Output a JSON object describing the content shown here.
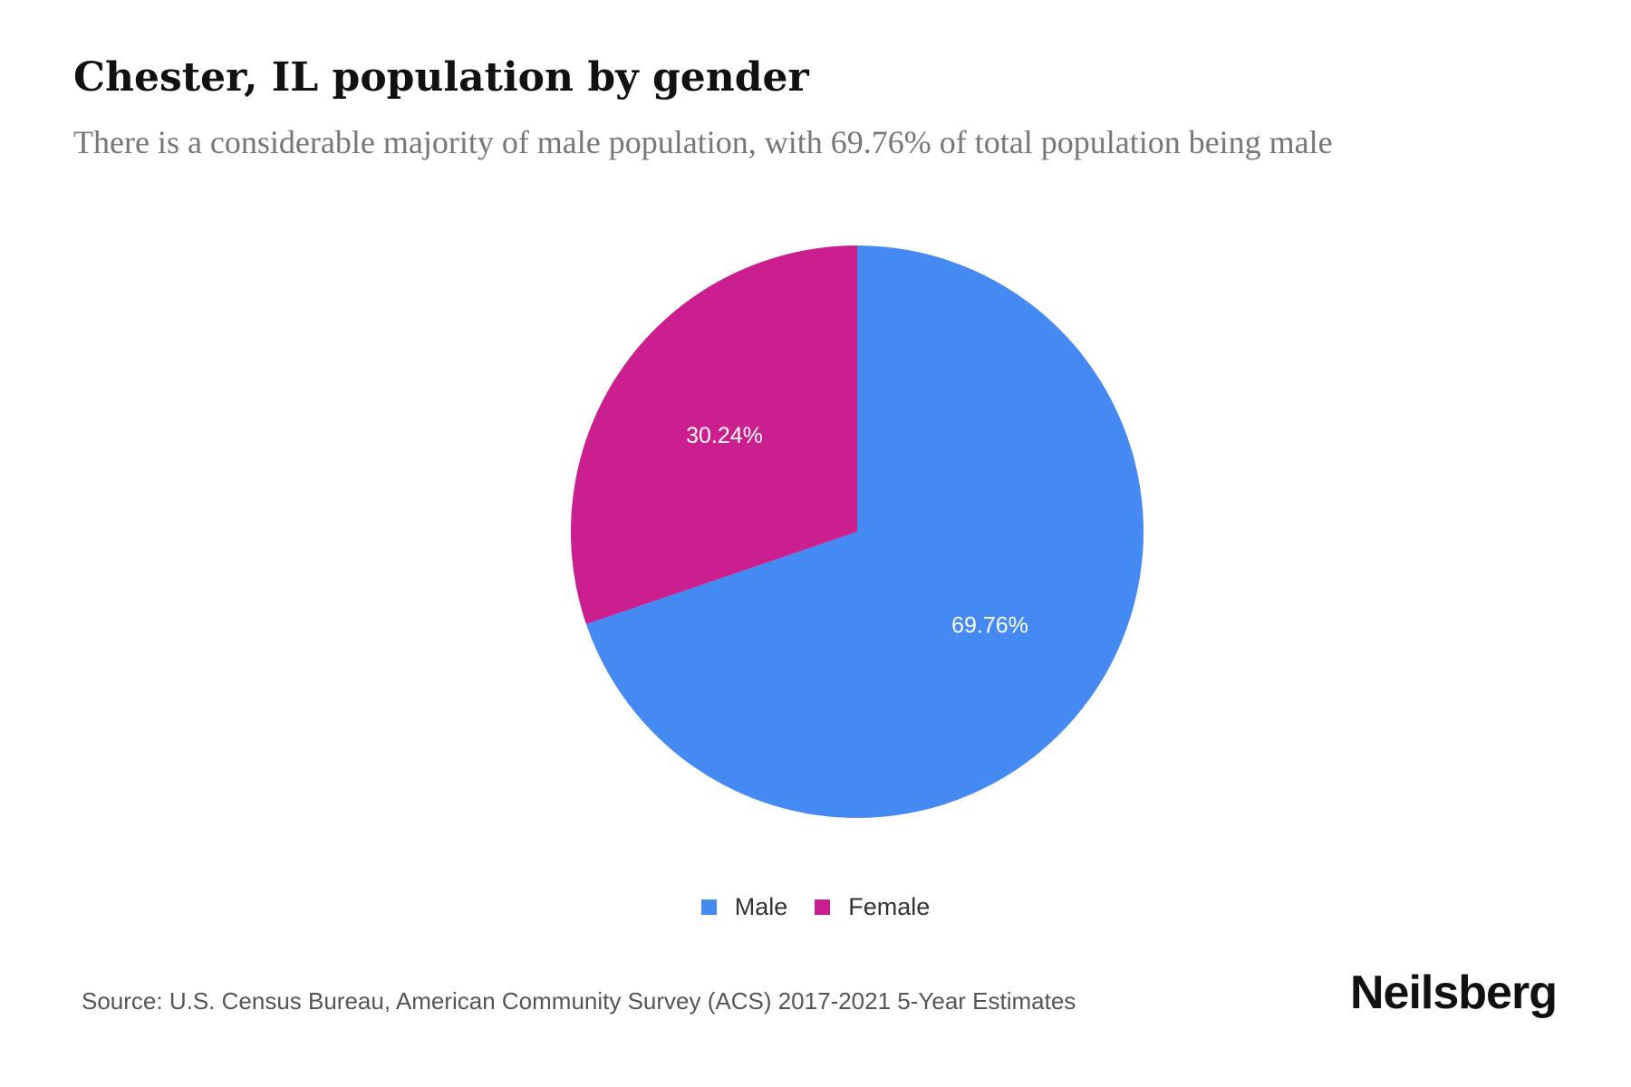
{
  "chart_data": {
    "type": "pie",
    "title": "Chester, IL population by gender",
    "subtitle": "There is a considerable majority of male population, with 69.76% of total population being male",
    "slices": [
      {
        "label": "Male",
        "value": 69.76,
        "display": "69.76%",
        "color": "#4589F3"
      },
      {
        "label": "Female",
        "value": 30.24,
        "display": "30.24%",
        "color": "#CB1E8F"
      }
    ],
    "legend_placement": "bottom"
  },
  "footer": {
    "source": "Source: U.S. Census Bureau, American Community Survey (ACS) 2017-2021 5-Year Estimates",
    "brand": "Neilsberg"
  }
}
